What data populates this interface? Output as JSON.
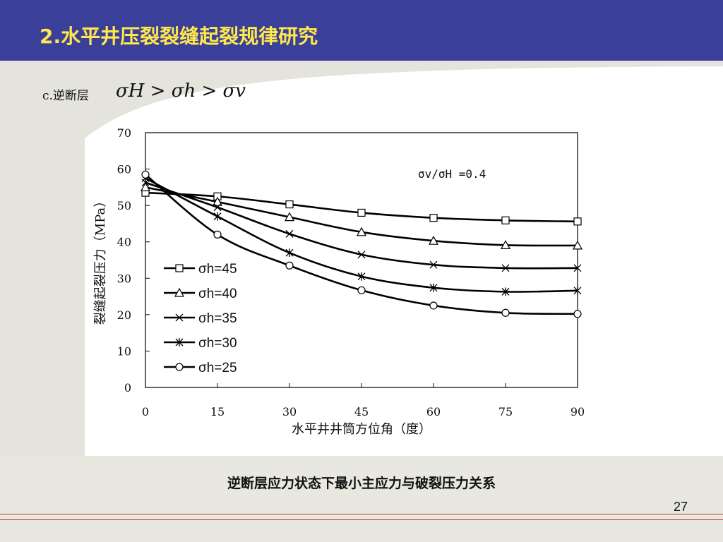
{
  "slide": {
    "title": "2.水平井压裂裂缝起裂规律研究",
    "fault_label": "c.逆断层",
    "formula": "σH > σh > σv",
    "caption": "逆断层应力状态下最小主应力与破裂压力关系",
    "page_number": "27",
    "colors": {
      "title_bar": "#3a3f9a",
      "title_text": "#ffe84a",
      "rule": "#c0392b"
    }
  },
  "chart_data": {
    "type": "line",
    "annotation": "σv/σH =0.4",
    "xlabel": "水平井井筒方位角（度）",
    "ylabel": "裂缝起裂压力（MPa）",
    "x": [
      0,
      15,
      30,
      45,
      60,
      75,
      90
    ],
    "xlim": [
      0,
      90
    ],
    "ylim": [
      0,
      70
    ],
    "xticks": [
      "0",
      "15",
      "30",
      "45",
      "60",
      "75",
      "90"
    ],
    "yticks": [
      "0",
      "10",
      "20",
      "30",
      "40",
      "50",
      "60",
      "70"
    ],
    "grid": false,
    "legend_position": "left-bottom",
    "series": [
      {
        "name": "σh=45",
        "marker": "square",
        "values": [
          53.5,
          52.5,
          50.3,
          48.0,
          46.6,
          45.9,
          45.6
        ]
      },
      {
        "name": "σh=40",
        "marker": "triangle",
        "values": [
          55.0,
          51.0,
          46.8,
          42.7,
          40.3,
          39.1,
          39.0
        ]
      },
      {
        "name": "σh=35",
        "marker": "x",
        "values": [
          56.3,
          49.5,
          42.2,
          36.5,
          33.7,
          32.8,
          32.8
        ]
      },
      {
        "name": "σh=30",
        "marker": "star",
        "values": [
          57.5,
          47.0,
          37.0,
          30.5,
          27.4,
          26.3,
          26.6
        ]
      },
      {
        "name": "σh=25",
        "marker": "circle",
        "values": [
          58.5,
          42.0,
          33.5,
          26.7,
          22.5,
          20.5,
          20.2
        ]
      }
    ]
  }
}
